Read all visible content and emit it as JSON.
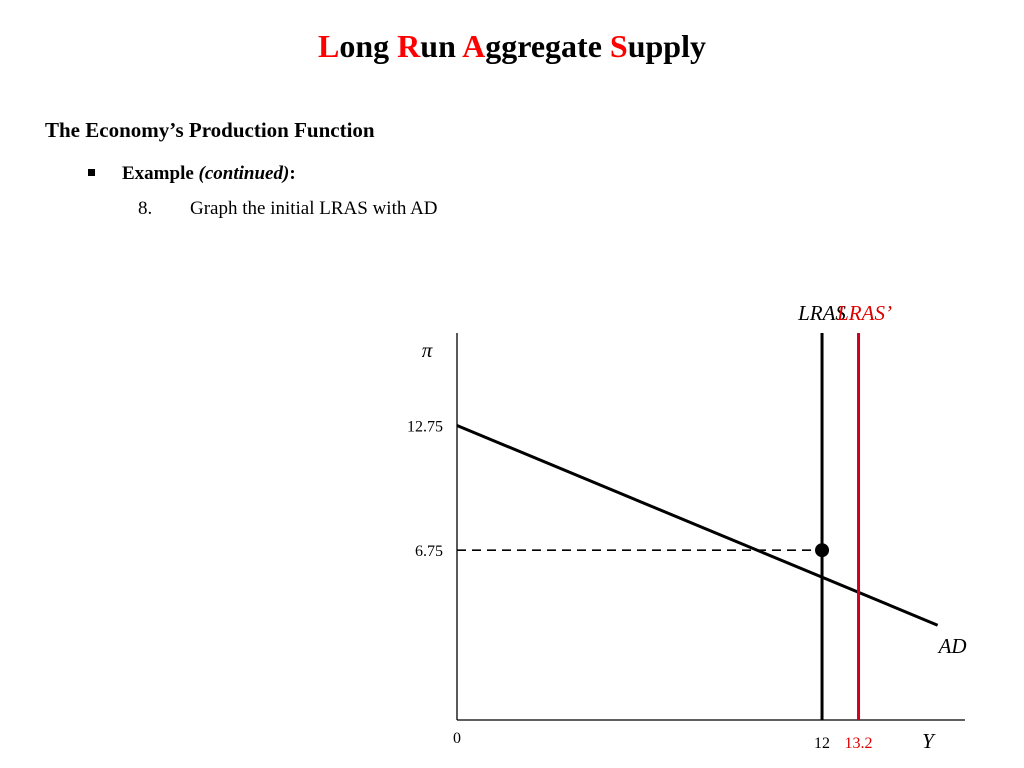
{
  "slide": {
    "title_parts": [
      {
        "cap": "L",
        "rest": "ong "
      },
      {
        "cap": "R",
        "rest": "un "
      },
      {
        "cap": "A",
        "rest": "ggregate "
      },
      {
        "cap": "S",
        "rest": "upply"
      }
    ],
    "heading": "The Economy’s Production Function",
    "bullet": {
      "label": "Example",
      "qualifier": "(continued)",
      "colon": ":"
    },
    "step": {
      "number": "8.",
      "text": "Graph the initial LRAS with AD"
    },
    "colors": {
      "title_accent": "#ff0000",
      "lras_new": "#cc0022",
      "lras_new_label": "#dd0000",
      "ink": "#000000"
    }
  },
  "chart_data": {
    "type": "line",
    "ylabel": "π",
    "xlabel": "Y",
    "origin_label": "0",
    "y_ticks": [
      {
        "value": 12.75,
        "label": "12.75"
      },
      {
        "value": 6.75,
        "label": "6.75"
      }
    ],
    "x_ticks": [
      {
        "value": 12,
        "label": "12"
      },
      {
        "value": 13.2,
        "label": "13.2",
        "color": "#dd0000"
      }
    ],
    "series": [
      {
        "name": "AD",
        "points": [
          [
            0,
            12.75
          ],
          [
            15.8,
            3.14
          ]
        ],
        "color": "#000000"
      },
      {
        "name": "LRAS",
        "x": 12,
        "color": "#000000"
      },
      {
        "name": "LRAS’",
        "x": 13.2,
        "color": "#cc0022",
        "label_color": "#dd0000"
      }
    ],
    "equilibrium": {
      "x": 12,
      "y": 6.75
    },
    "xlim": [
      0,
      16.7
    ],
    "ylim": [
      -1.42,
      17.2
    ],
    "grid": false
  }
}
